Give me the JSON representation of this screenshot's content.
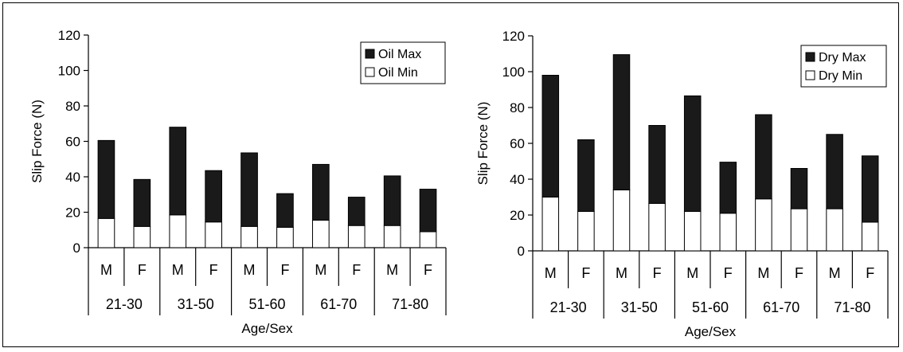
{
  "chart_data": [
    {
      "type": "bar",
      "stacked": true,
      "ylabel": "Slip Force (N)",
      "xlabel": "Age/Sex",
      "ylim": [
        0,
        120
      ],
      "yticks": [
        0,
        20,
        40,
        60,
        80,
        100,
        120
      ],
      "groups": [
        "21-30",
        "31-50",
        "51-60",
        "61-70",
        "71-80"
      ],
      "categories": [
        "M",
        "F",
        "M",
        "F",
        "M",
        "F",
        "M",
        "F",
        "M",
        "F"
      ],
      "series": [
        {
          "name": "Oil Min",
          "color": "#ffffff",
          "values": [
            16.5,
            12,
            18.5,
            14.5,
            12,
            11.5,
            15.5,
            12.5,
            12.5,
            9
          ]
        },
        {
          "name": "Oil Max",
          "color": "#1a1a1a",
          "values": [
            44,
            26.5,
            49.5,
            29,
            41.5,
            19,
            31.5,
            16,
            28,
            24
          ]
        }
      ],
      "legend": "top-right"
    },
    {
      "type": "bar",
      "stacked": true,
      "ylabel": "Slip Force (N)",
      "xlabel": "Age/Sex",
      "ylim": [
        0,
        120
      ],
      "yticks": [
        0,
        20,
        40,
        60,
        80,
        100,
        120
      ],
      "groups": [
        "21-30",
        "31-50",
        "51-60",
        "61-70",
        "71-80"
      ],
      "categories": [
        "M",
        "F",
        "M",
        "F",
        "M",
        "F",
        "M",
        "F",
        "M",
        "F"
      ],
      "series": [
        {
          "name": "Dry Min",
          "color": "#ffffff",
          "values": [
            30,
            22,
            34,
            26.5,
            22,
            21,
            29,
            23.5,
            23.5,
            16
          ]
        },
        {
          "name": "Dry Max",
          "color": "#1a1a1a",
          "values": [
            68,
            40,
            75.5,
            43.5,
            64.5,
            28.5,
            47,
            22.5,
            41.5,
            37
          ]
        }
      ],
      "legend": "top-right"
    }
  ]
}
